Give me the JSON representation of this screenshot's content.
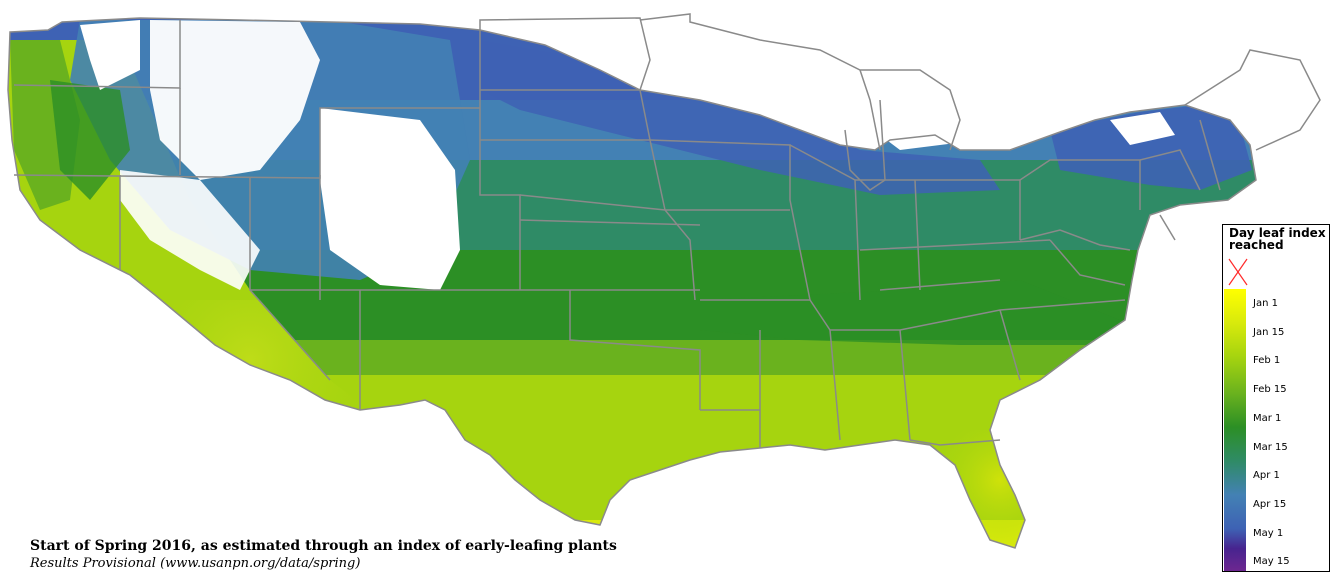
{
  "caption": {
    "title": "Start of Spring 2016, as estimated through an index of early-leafing plants",
    "subtitle": "Results Provisional  (www.usanpn.org/data/spring)"
  },
  "legend": {
    "title": "Day leaf index reached",
    "no_data_icon": "red-x-icon",
    "entries": [
      "Jan 1",
      "Jan 15",
      "Feb 1",
      "Feb 15",
      "Mar 1",
      "Mar 15",
      "Apr 1",
      "Apr 15",
      "May 1",
      "May 15"
    ]
  },
  "colors": {
    "jan_1": "#ffff00",
    "jan_15": "#d8ea0c",
    "feb_1": "#a6d40f",
    "feb_15": "#6ab21e",
    "mar_1": "#2c8f25",
    "mar_15": "#2f8b66",
    "apr_1": "#4381b4",
    "apr_15": "#3e62b4",
    "may_1": "#47248f",
    "may_15": "#6d2790",
    "not_reached": "#ffffff",
    "boundary": "#8a8a8a"
  }
}
